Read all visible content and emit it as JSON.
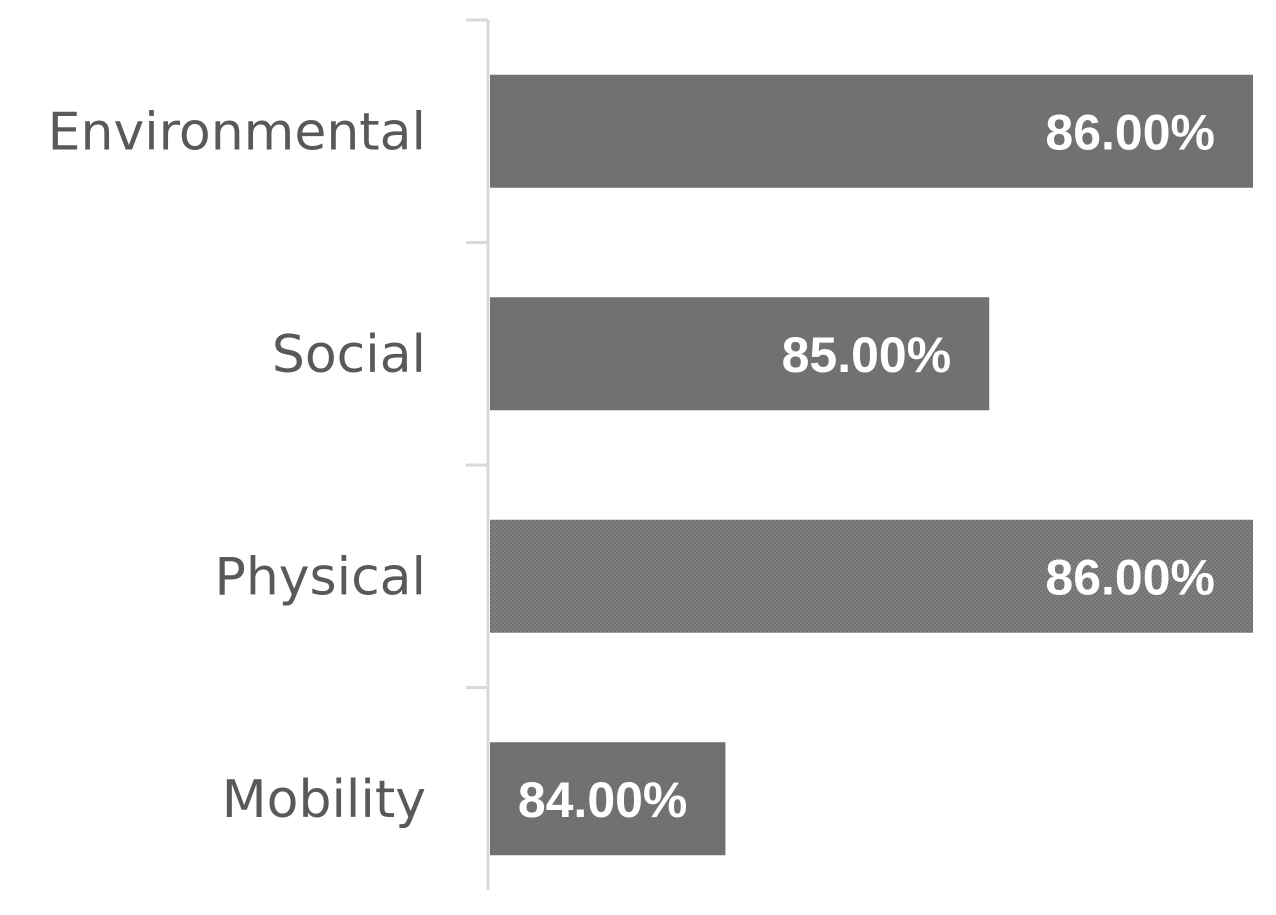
{
  "chart_data": {
    "type": "bar",
    "orientation": "horizontal",
    "categories": [
      "Environmental",
      "Social",
      "Physical",
      "Mobility"
    ],
    "values": [
      86.0,
      85.0,
      86.0,
      84.0
    ],
    "data_labels": [
      "86.00%",
      "85.00%",
      "86.00%",
      "84.00%"
    ],
    "unit": "%",
    "xlim": [
      83.1,
      86.0
    ],
    "title": "",
    "xlabel": "",
    "ylabel": "",
    "grid": false,
    "legend": "none",
    "colors": {
      "bar": "#727070",
      "axis": "#d9d9d9",
      "category_text": "#595959",
      "label_text": "#ffffff"
    }
  }
}
